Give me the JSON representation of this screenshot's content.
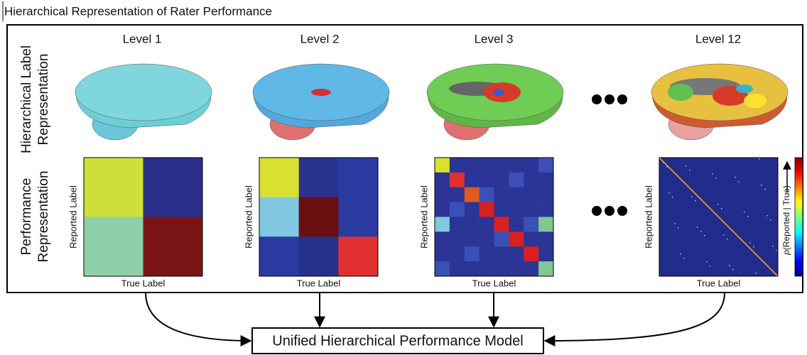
{
  "title": "Hierarchical Representation of Rater Performance",
  "row_labels": [
    {
      "lines": [
        "Hierarchical Label",
        "Representation"
      ]
    },
    {
      "lines": [
        "Performance",
        "Representation"
      ]
    }
  ],
  "levels": [
    {
      "label": "Level 1",
      "y_axis": "Reported Label",
      "x_axis": "True Label"
    },
    {
      "label": "Level 2",
      "y_axis": "Reported Label",
      "x_axis": "True Label"
    },
    {
      "label": "Level 3",
      "y_axis": "Reported Label",
      "x_axis": "True Label"
    },
    {
      "label": "Level 12",
      "y_axis": "Reported Label",
      "x_axis": "True Label"
    }
  ],
  "colorbar": {
    "symbol": "p",
    "label": "(Reported | True)"
  },
  "model": "Unified Hierarchical Performance Model"
}
